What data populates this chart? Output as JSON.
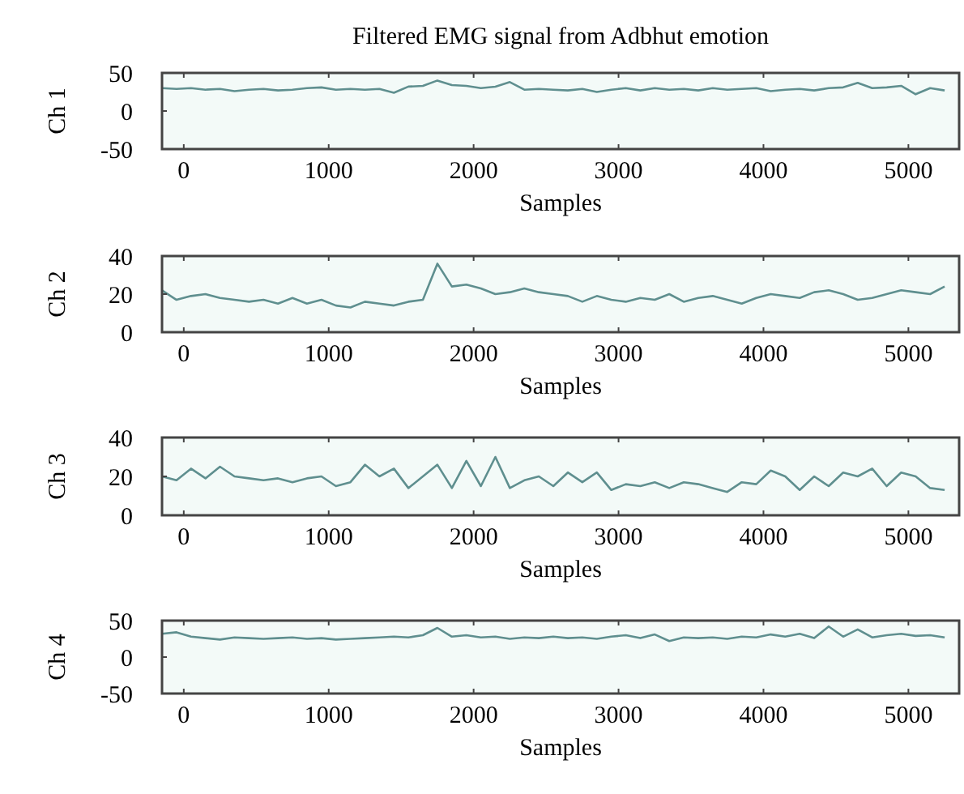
{
  "chart_data": [
    {
      "type": "line",
      "title": "Filtered EMG signal from Adbhut emotion",
      "xlabel": "Samples",
      "ylabel": "Ch 1",
      "xlim": [
        -150,
        5350
      ],
      "ylim": [
        -50,
        50
      ],
      "xticks": [
        0,
        1000,
        2000,
        3000,
        4000,
        5000
      ],
      "yticks": [
        -50,
        0,
        50
      ],
      "grid": false,
      "x": [
        -150,
        -50,
        50,
        150,
        250,
        350,
        450,
        550,
        650,
        750,
        850,
        950,
        1050,
        1150,
        1250,
        1350,
        1450,
        1550,
        1650,
        1750,
        1850,
        1950,
        2050,
        2150,
        2250,
        2350,
        2450,
        2550,
        2650,
        2750,
        2850,
        2950,
        3050,
        3150,
        3250,
        3350,
        3450,
        3550,
        3650,
        3750,
        3850,
        3950,
        4050,
        4150,
        4250,
        4350,
        4450,
        4550,
        4650,
        4750,
        4850,
        4950,
        5050,
        5150,
        5250
      ],
      "series": [
        {
          "color": "#5f8f8f",
          "values": [
            30,
            29,
            30,
            28,
            29,
            26,
            28,
            29,
            27,
            28,
            30,
            31,
            28,
            29,
            28,
            29,
            24,
            32,
            33,
            40,
            34,
            33,
            30,
            32,
            38,
            28,
            29,
            28,
            27,
            29,
            25,
            28,
            30,
            27,
            30,
            28,
            29,
            27,
            30,
            28,
            29,
            30,
            26,
            28,
            29,
            27,
            30,
            31,
            37,
            30,
            31,
            33,
            22,
            30,
            27
          ]
        }
      ]
    },
    {
      "type": "line",
      "xlabel": "Samples",
      "ylabel": "Ch 2",
      "xlim": [
        -150,
        5350
      ],
      "ylim": [
        0,
        40
      ],
      "xticks": [
        0,
        1000,
        2000,
        3000,
        4000,
        5000
      ],
      "yticks": [
        0,
        20,
        40
      ],
      "grid": false,
      "x": [
        -150,
        -50,
        50,
        150,
        250,
        350,
        450,
        550,
        650,
        750,
        850,
        950,
        1050,
        1150,
        1250,
        1350,
        1450,
        1550,
        1650,
        1750,
        1850,
        1950,
        2050,
        2150,
        2250,
        2350,
        2450,
        2550,
        2650,
        2750,
        2850,
        2950,
        3050,
        3150,
        3250,
        3350,
        3450,
        3550,
        3650,
        3750,
        3850,
        3950,
        4050,
        4150,
        4250,
        4350,
        4450,
        4550,
        4650,
        4750,
        4850,
        4950,
        5050,
        5150,
        5250
      ],
      "series": [
        {
          "color": "#5f8f8f",
          "values": [
            22,
            17,
            19,
            20,
            18,
            17,
            16,
            17,
            15,
            18,
            15,
            17,
            14,
            13,
            16,
            15,
            14,
            16,
            17,
            36,
            24,
            25,
            23,
            20,
            21,
            23,
            21,
            20,
            19,
            16,
            19,
            17,
            16,
            18,
            17,
            20,
            16,
            18,
            19,
            17,
            15,
            18,
            20,
            19,
            18,
            21,
            22,
            20,
            17,
            18,
            20,
            22,
            21,
            20,
            24
          ]
        }
      ]
    },
    {
      "type": "line",
      "xlabel": "Samples",
      "ylabel": "Ch 3",
      "xlim": [
        -150,
        5350
      ],
      "ylim": [
        0,
        40
      ],
      "xticks": [
        0,
        1000,
        2000,
        3000,
        4000,
        5000
      ],
      "yticks": [
        0,
        20,
        40
      ],
      "grid": false,
      "x": [
        -150,
        -50,
        50,
        150,
        250,
        350,
        450,
        550,
        650,
        750,
        850,
        950,
        1050,
        1150,
        1250,
        1350,
        1450,
        1550,
        1650,
        1750,
        1850,
        1950,
        2050,
        2150,
        2250,
        2350,
        2450,
        2550,
        2650,
        2750,
        2850,
        2950,
        3050,
        3150,
        3250,
        3350,
        3450,
        3550,
        3650,
        3750,
        3850,
        3950,
        4050,
        4150,
        4250,
        4350,
        4450,
        4550,
        4650,
        4750,
        4850,
        4950,
        5050,
        5150,
        5250
      ],
      "series": [
        {
          "color": "#5f8f8f",
          "values": [
            20,
            18,
            24,
            19,
            25,
            20,
            19,
            18,
            19,
            17,
            19,
            20,
            15,
            17,
            26,
            20,
            24,
            14,
            20,
            26,
            14,
            28,
            15,
            30,
            14,
            18,
            20,
            15,
            22,
            17,
            22,
            13,
            16,
            15,
            17,
            14,
            17,
            16,
            14,
            12,
            17,
            16,
            23,
            20,
            13,
            20,
            15,
            22,
            20,
            24,
            15,
            22,
            20,
            14,
            13
          ]
        }
      ]
    },
    {
      "type": "line",
      "xlabel": "Samples",
      "ylabel": "Ch 4",
      "xlim": [
        -150,
        5350
      ],
      "ylim": [
        -50,
        50
      ],
      "xticks": [
        0,
        1000,
        2000,
        3000,
        4000,
        5000
      ],
      "yticks": [
        -50,
        0,
        50
      ],
      "grid": false,
      "x": [
        -150,
        -50,
        50,
        150,
        250,
        350,
        450,
        550,
        650,
        750,
        850,
        950,
        1050,
        1150,
        1250,
        1350,
        1450,
        1550,
        1650,
        1750,
        1850,
        1950,
        2050,
        2150,
        2250,
        2350,
        2450,
        2550,
        2650,
        2750,
        2850,
        2950,
        3050,
        3150,
        3250,
        3350,
        3450,
        3550,
        3650,
        3750,
        3850,
        3950,
        4050,
        4150,
        4250,
        4350,
        4450,
        4550,
        4650,
        4750,
        4850,
        4950,
        5050,
        5150,
        5250
      ],
      "series": [
        {
          "color": "#5f8f8f",
          "values": [
            32,
            34,
            28,
            26,
            24,
            27,
            26,
            25,
            26,
            27,
            25,
            26,
            24,
            25,
            26,
            27,
            28,
            27,
            30,
            40,
            28,
            30,
            27,
            28,
            25,
            27,
            26,
            28,
            26,
            27,
            25,
            28,
            30,
            26,
            31,
            22,
            27,
            26,
            27,
            25,
            28,
            27,
            31,
            28,
            32,
            26,
            42,
            28,
            38,
            27,
            30,
            32,
            29,
            30,
            27
          ]
        }
      ]
    }
  ]
}
